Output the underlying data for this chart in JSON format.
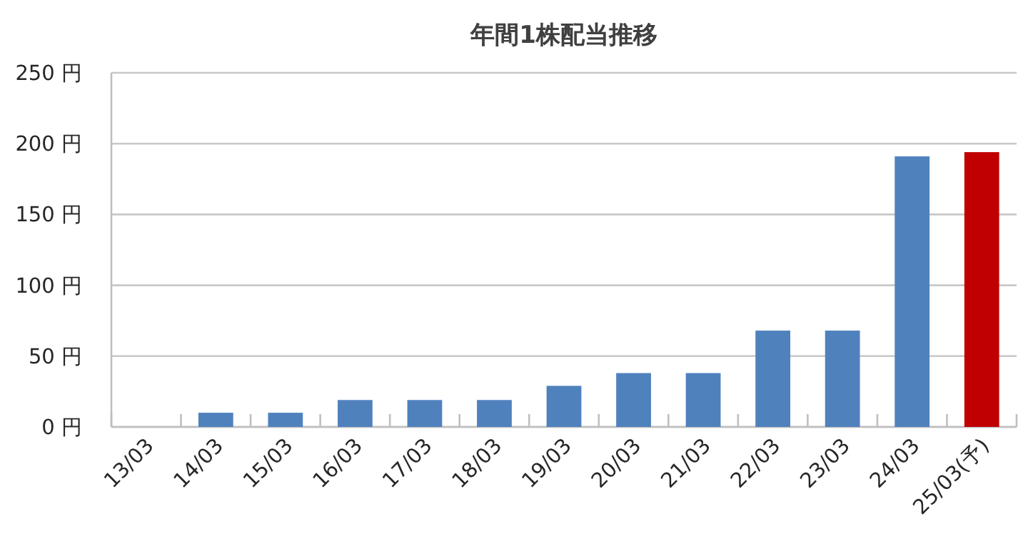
{
  "chart_data": {
    "type": "bar",
    "title": "年間1株配当推移",
    "categories": [
      "13/03",
      "14/03",
      "15/03",
      "16/03",
      "17/03",
      "18/03",
      "19/03",
      "20/03",
      "21/03",
      "22/03",
      "23/03",
      "24/03",
      "25/03(予)"
    ],
    "values": [
      0,
      10,
      10,
      19,
      19,
      19,
      29,
      38,
      38,
      68,
      68,
      191,
      194
    ],
    "colors": [
      "#4f81bd",
      "#4f81bd",
      "#4f81bd",
      "#4f81bd",
      "#4f81bd",
      "#4f81bd",
      "#4f81bd",
      "#4f81bd",
      "#4f81bd",
      "#4f81bd",
      "#4f81bd",
      "#4f81bd",
      "#c00000"
    ],
    "ylim": [
      0,
      250
    ],
    "yticks": [
      {
        "value": 0,
        "label": "0 円"
      },
      {
        "value": 50,
        "label": "50 円"
      },
      {
        "value": 100,
        "label": "100 円"
      },
      {
        "value": 150,
        "label": "150 円"
      },
      {
        "value": 200,
        "label": "200 円"
      },
      {
        "value": 250,
        "label": "250 円"
      }
    ],
    "grid": "y"
  }
}
